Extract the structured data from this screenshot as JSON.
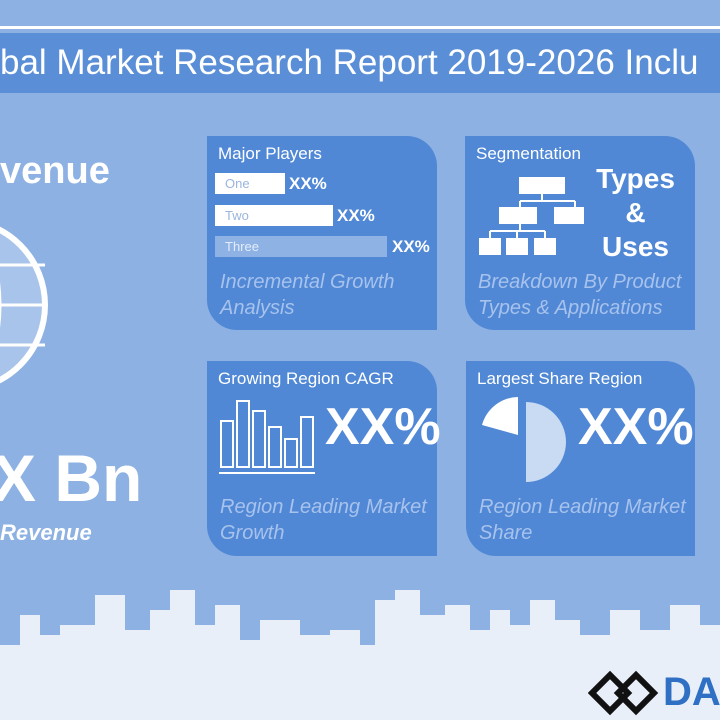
{
  "header": {
    "title": "bal Market Research Report 2019-2026 Inclu"
  },
  "left": {
    "heading": "venue",
    "amount": "X Bn",
    "caption": "Revenue"
  },
  "cards": [
    {
      "title": "Major Players",
      "bars": [
        {
          "label": "One",
          "value": "XX%"
        },
        {
          "label": "Two",
          "value": "XX%"
        },
        {
          "label": "Three",
          "value": "XX%"
        }
      ],
      "caption": "Incremental Growth Analysis"
    },
    {
      "title": "Segmentation",
      "lines": [
        "Types",
        "&",
        "Uses"
      ],
      "caption": "Breakdown By Product Types & Applications"
    },
    {
      "title": "Growing Region CAGR",
      "value": "XX%",
      "caption": "Region Leading Market Growth"
    },
    {
      "title": "Largest Share Region",
      "value": "XX%",
      "caption": "Region Leading Market Share"
    }
  ],
  "logo": {
    "text": "DA"
  }
}
